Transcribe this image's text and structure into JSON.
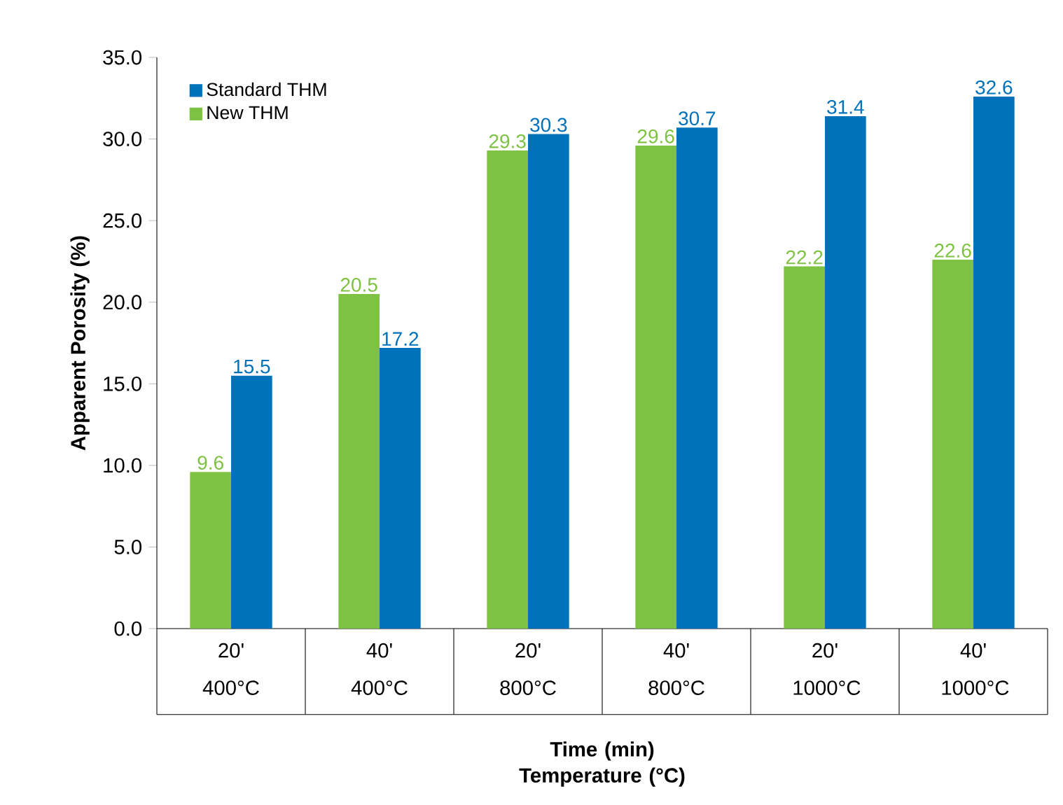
{
  "chart_data": {
    "type": "bar",
    "xlabel": "Time (min) Temperature (°C)",
    "ylabel": "Apparent Porosity (%)",
    "categories": [
      "20' 400°C",
      "40' 400°C",
      "20' 800°C",
      "40' 800°C",
      "20' 1000°C",
      "40' 1000°C"
    ],
    "series": [
      {
        "name": "New THM",
        "color": "#7dc242",
        "values": [
          9.6,
          20.5,
          29.3,
          29.6,
          22.2,
          22.6
        ]
      },
      {
        "name": "Standard THM",
        "color": "#0072bc",
        "values": [
          15.5,
          17.2,
          30.3,
          30.7,
          31.4,
          32.6
        ]
      }
    ],
    "ylim": [
      0,
      35
    ],
    "yticks": [
      {
        "value": 0,
        "label": "0.0"
      },
      {
        "value": 5,
        "label": "5.0"
      },
      {
        "value": 10,
        "label": "10.0"
      },
      {
        "value": 15,
        "label": "15.0"
      },
      {
        "value": 20,
        "label": "20.0"
      },
      {
        "value": 25,
        "label": "25.0"
      },
      {
        "value": 30,
        "label": "30.0"
      },
      {
        "value": 35,
        "label": "35.0"
      }
    ],
    "data_labels": true,
    "legend": "top left",
    "grid": false
  }
}
